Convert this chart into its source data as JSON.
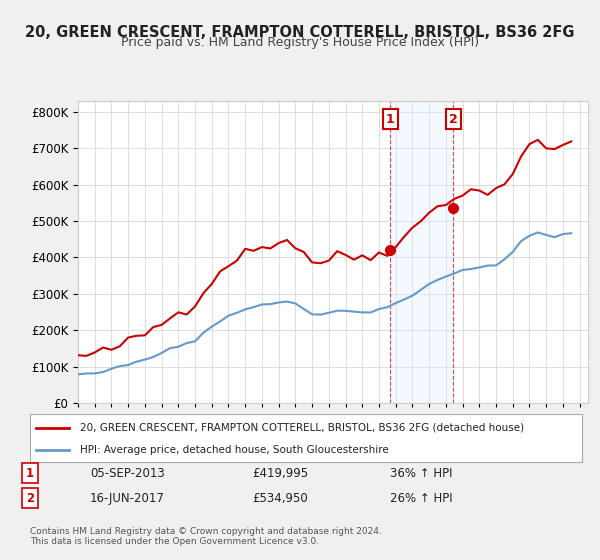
{
  "title": "20, GREEN CRESCENT, FRAMPTON COTTERELL, BRISTOL, BS36 2FG",
  "subtitle": "Price paid vs. HM Land Registry's House Price Index (HPI)",
  "legend_line1": "20, GREEN CRESCENT, FRAMPTON COTTERELL, BRISTOL, BS36 2FG (detached house)",
  "legend_line2": "HPI: Average price, detached house, South Gloucestershire",
  "footer": "Contains HM Land Registry data © Crown copyright and database right 2024.\nThis data is licensed under the Open Government Licence v3.0.",
  "sale1_label": "1",
  "sale1_date": "05-SEP-2013",
  "sale1_price": "£419,995",
  "sale1_hpi": "36% ↑ HPI",
  "sale1_year": 2013.67,
  "sale1_value": 419995,
  "sale2_label": "2",
  "sale2_date": "16-JUN-2017",
  "sale2_price": "£534,950",
  "sale2_hpi": "26% ↑ HPI",
  "sale2_year": 2017.45,
  "sale2_value": 534950,
  "property_color": "#cc0000",
  "hpi_color": "#6699cc",
  "shaded_color": "#ddeeff",
  "marker_color": "#cc0000",
  "ylim": [
    0,
    830000
  ],
  "yticks": [
    0,
    100000,
    200000,
    300000,
    400000,
    500000,
    600000,
    700000,
    800000
  ],
  "xlim_start": 1995.0,
  "xlim_end": 2025.5,
  "background_color": "#f0f0f0",
  "plot_background": "#ffffff"
}
